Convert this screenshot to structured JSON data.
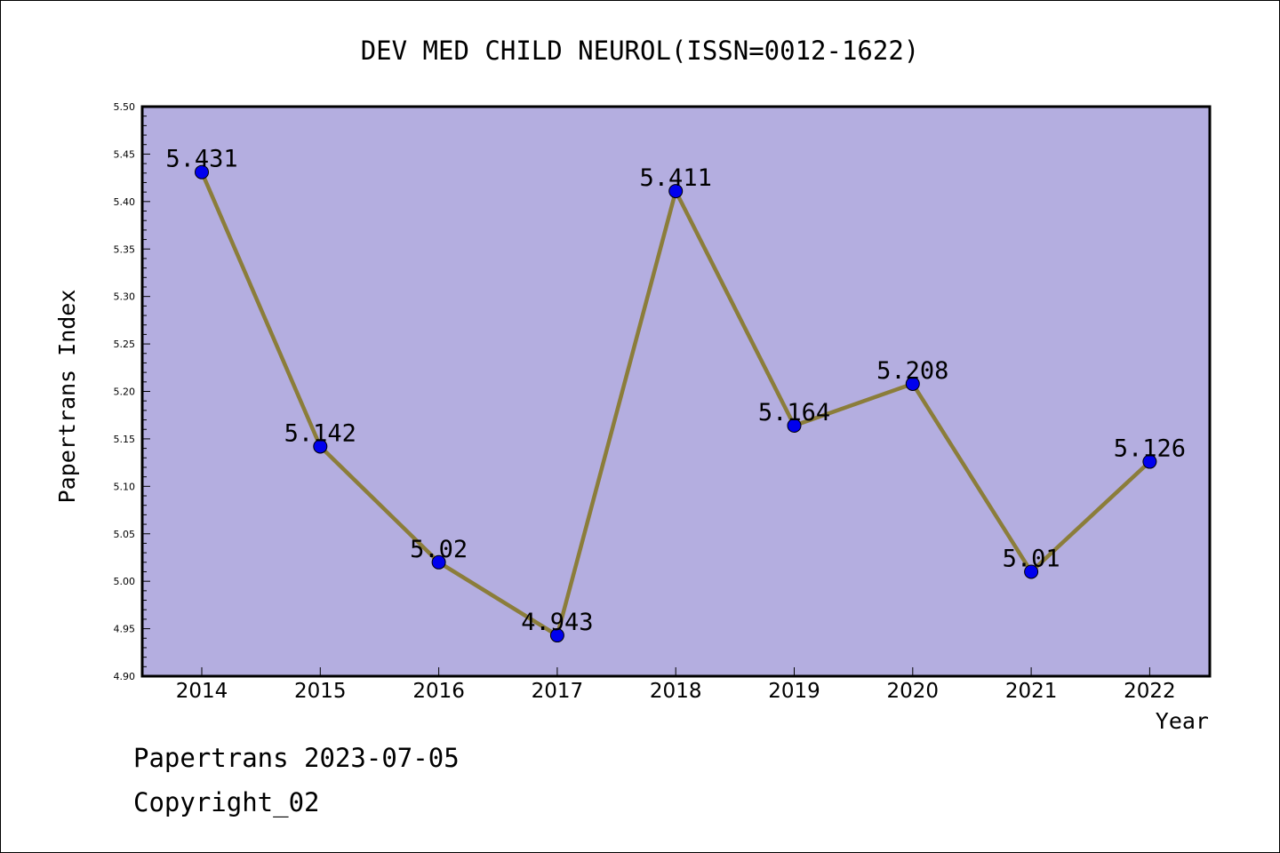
{
  "chart_data": {
    "type": "line",
    "title": "DEV MED CHILD NEUROL(ISSN=0012-1622)",
    "xlabel": "Year",
    "ylabel": "Papertrans Index",
    "categories": [
      "2014",
      "2015",
      "2016",
      "2017",
      "2018",
      "2019",
      "2020",
      "2021",
      "2022"
    ],
    "values": [
      5.431,
      5.142,
      5.02,
      4.943,
      5.411,
      5.164,
      5.208,
      5.01,
      5.126
    ],
    "data_labels": [
      "5.431",
      "5.142",
      "5.02",
      "4.943",
      "5.411",
      "5.164",
      "5.208",
      "5.01",
      "5.126"
    ],
    "ylim": [
      4.9,
      5.5
    ],
    "yticks": [
      "4.90",
      "4.95",
      "5.00",
      "5.05",
      "5.10",
      "5.15",
      "5.20",
      "5.25",
      "5.30",
      "5.35",
      "5.40",
      "5.45",
      "5.50"
    ],
    "grid": false,
    "legend": "none",
    "colors": {
      "plot_background": "#b4aee0",
      "line": "#8b7d3a",
      "marker": "#0000ee"
    }
  },
  "footer": {
    "line1": "Papertrans 2023-07-05",
    "line2": "Copyright_02"
  }
}
